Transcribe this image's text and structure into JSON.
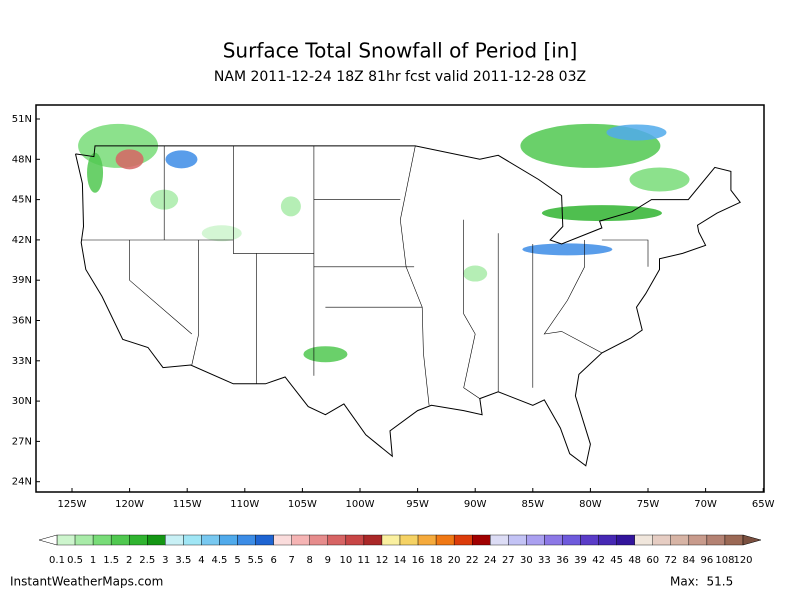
{
  "header": {
    "title": "Surface Total Snowfall of Period [in]",
    "subtitle": "NAM 2011-12-24 18Z 81hr fcst valid 2011-12-28 03Z"
  },
  "map": {
    "lat_labels": [
      "51N",
      "48N",
      "45N",
      "42N",
      "39N",
      "36N",
      "33N",
      "30N",
      "27N",
      "24N"
    ],
    "lon_labels": [
      "125W",
      "120W",
      "115W",
      "110W",
      "105W",
      "100W",
      "95W",
      "90W",
      "85W",
      "80W",
      "75W",
      "70W",
      "65W"
    ]
  },
  "colorbar": {
    "labels": [
      "0.1",
      "0.5",
      "1",
      "1.5",
      "2",
      "2.5",
      "3",
      "3.5",
      "4",
      "4.5",
      "5",
      "5.5",
      "6",
      "7",
      "8",
      "9",
      "10",
      "11",
      "12",
      "14",
      "16",
      "18",
      "20",
      "22",
      "24",
      "27",
      "30",
      "33",
      "36",
      "39",
      "42",
      "45",
      "48",
      "60",
      "72",
      "84",
      "96",
      "108",
      "120"
    ],
    "colors": [
      "#cdf5cd",
      "#a8eba8",
      "#78dc78",
      "#50c850",
      "#30b430",
      "#149614",
      "#c8f0f5",
      "#a0e6f5",
      "#78c8f0",
      "#50aaeb",
      "#3c8ce6",
      "#1e64d2",
      "#fadcdc",
      "#f5b4b4",
      "#e68c8c",
      "#d76464",
      "#c84646",
      "#aa2828",
      "#faf0a0",
      "#f5d264",
      "#f5aa3c",
      "#f07814",
      "#dc3c0a",
      "#a00000",
      "#dcdcf5",
      "#c3c3f5",
      "#aaa0f0",
      "#8c78e6",
      "#6e5adc",
      "#5a3cc8",
      "#4628b4",
      "#32149b",
      "#f0e6dc",
      "#e6cdc3",
      "#d7b4a5",
      "#c89b8c",
      "#b48273",
      "#9b6955"
    ]
  },
  "footer": {
    "source": "InstantWeatherMaps.com",
    "max": "Max:  51.5"
  }
}
